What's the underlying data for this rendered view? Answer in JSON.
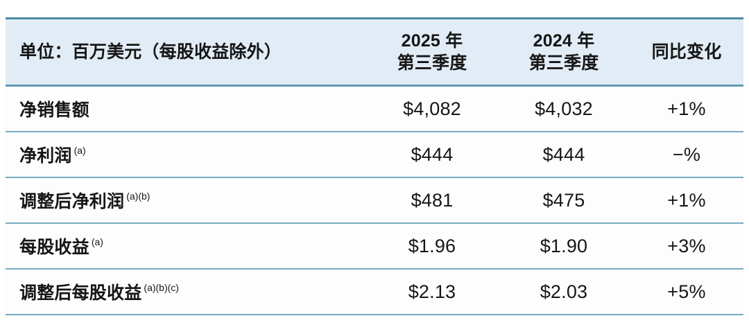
{
  "table": {
    "header": {
      "unit": "单位：百万美元（每股收益除外）",
      "q3_2025_line1": "2025 年",
      "q3_2025_line2": "第三季度",
      "q3_2024_line1": "2024 年",
      "q3_2024_line2": "第三季度",
      "yoy": "同比变化"
    },
    "rows": [
      {
        "label": "净销售额",
        "sup": "",
        "v2025": "$4,082",
        "v2024": "$4,032",
        "yoy": "+1%"
      },
      {
        "label": "净利润",
        "sup": "(a)",
        "v2025": "$444",
        "v2024": "$444",
        "yoy": "−%"
      },
      {
        "label": "调整后净利润",
        "sup": "(a)(b)",
        "v2025": "$481",
        "v2024": "$475",
        "yoy": "+1%"
      },
      {
        "label": "每股收益",
        "sup": "(a)",
        "v2025": "$1.96",
        "v2024": "$1.90",
        "yoy": "+3%"
      },
      {
        "label": "调整后每股收益",
        "sup": "(a)(b)(c)",
        "v2025": "$2.13",
        "v2024": "$2.03",
        "yoy": "+5%"
      }
    ],
    "colors": {
      "header_bg": "#e2ecf6",
      "border_top": "#4a8aa4",
      "row_divider": "#74abbf",
      "text": "#161616"
    }
  },
  "chart_data": {
    "type": "table",
    "title": "单位：百万美元（每股收益除外）",
    "columns": [
      "单位：百万美元（每股收益除外）",
      "2025 年第三季度",
      "2024 年第三季度",
      "同比变化"
    ],
    "rows": [
      [
        "净销售额",
        "$4,082",
        "$4,032",
        "+1%"
      ],
      [
        "净利润 (a)",
        "$444",
        "$444",
        "−%"
      ],
      [
        "调整后净利润 (a)(b)",
        "$481",
        "$475",
        "+1%"
      ],
      [
        "每股收益 (a)",
        "$1.96",
        "$1.90",
        "+3%"
      ],
      [
        "调整后每股收益 (a)(b)(c)",
        "$2.13",
        "$2.03",
        "+5%"
      ]
    ],
    "values_2025": [
      4082,
      444,
      481,
      1.96,
      2.13
    ],
    "values_2024": [
      4032,
      444,
      475,
      1.9,
      2.03
    ],
    "yoy_change_pct": [
      1,
      0,
      1,
      3,
      5
    ]
  }
}
